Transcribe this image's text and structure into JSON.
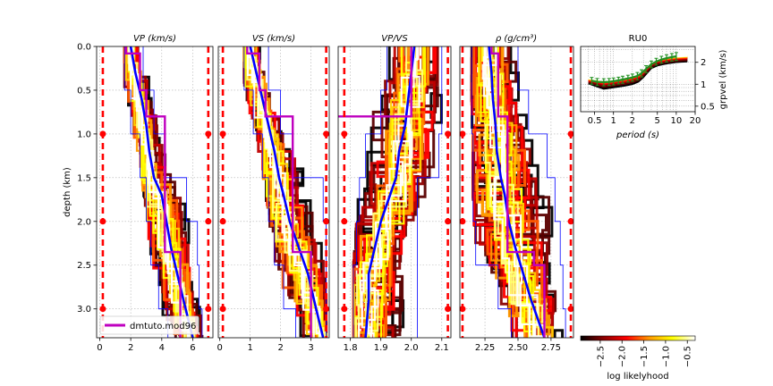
{
  "colors": {
    "bounds": "#ff0000",
    "median": "#0000ff",
    "reference_model": "#bf00bf",
    "dispersion_obs": "#1f8f1f",
    "grid": "#b0b0b0"
  },
  "colormap_stops": [
    "#000000",
    "#8b0000",
    "#ff0000",
    "#ff9900",
    "#ffff00",
    "#ffffff"
  ],
  "chart_data": [
    {
      "type": "line",
      "title": "V_P (km/s)",
      "title_text": "VP (km/s)",
      "ylabel": "depth (km)",
      "xlim": [
        -0.2,
        7.3
      ],
      "ylim": [
        3.33,
        0.0
      ],
      "xticks": [
        0,
        2,
        4,
        6
      ],
      "xtick_labels": [
        "0",
        "2",
        "4",
        "6"
      ],
      "yticks": [
        0.0,
        0.5,
        1.0,
        1.5,
        2.0,
        2.5,
        3.0
      ],
      "ytick_labels": [
        "0.0",
        "0.5",
        "1.0",
        "1.5",
        "2.0",
        "2.5",
        "3.0"
      ],
      "grid": true,
      "bounds": [
        0.2,
        7.0
      ],
      "bound_markers_depth": [
        1.0,
        2.0,
        3.0
      ],
      "legend": {
        "position": "bottom-left",
        "entries": [
          "dmtuto.mod96"
        ]
      },
      "reference_model": {
        "name": "dmtuto.mod96",
        "depth": [
          0.0,
          0.08,
          0.08,
          0.5,
          0.5,
          0.8,
          0.8,
          2.35,
          2.35,
          3.33
        ],
        "value": [
          1.7,
          1.7,
          2.6,
          2.6,
          3.0,
          3.0,
          4.2,
          4.2,
          5.2,
          5.2
        ]
      },
      "median": {
        "depth": [
          0.0,
          0.3,
          0.6,
          0.9,
          1.2,
          1.5,
          1.7,
          2.0,
          2.3,
          2.6,
          2.9,
          3.33
        ],
        "value": [
          2.0,
          2.3,
          2.7,
          3.0,
          3.2,
          3.5,
          4.0,
          4.3,
          4.6,
          5.0,
          5.4,
          6.0
        ]
      },
      "envelope_low": {
        "depth": [
          0.0,
          0.5,
          1.0,
          1.5,
          2.0,
          2.5,
          3.0,
          3.33
        ],
        "value": [
          1.6,
          2.0,
          2.6,
          3.0,
          3.3,
          3.8,
          4.4,
          5.0
        ]
      },
      "envelope_high": {
        "depth": [
          0.0,
          0.5,
          1.0,
          1.5,
          2.0,
          2.5,
          3.0,
          3.33
        ],
        "value": [
          2.8,
          3.5,
          4.2,
          5.6,
          6.3,
          6.4,
          6.6,
          6.6
        ]
      }
    },
    {
      "type": "line",
      "title": "V_S (km/s)",
      "title_text": "VS (km/s)",
      "xlim": [
        -0.05,
        3.6
      ],
      "ylim": [
        3.33,
        0.0
      ],
      "xticks": [
        0,
        1,
        2,
        3
      ],
      "xtick_labels": [
        "0",
        "1",
        "2",
        "3"
      ],
      "grid": true,
      "bounds": [
        0.1,
        3.5
      ],
      "bound_markers_depth": [
        1.0,
        2.0,
        3.0
      ],
      "reference_model": {
        "depth": [
          0.0,
          0.08,
          0.08,
          0.5,
          0.5,
          0.8,
          0.8,
          2.35,
          2.35,
          3.33
        ],
        "value": [
          0.9,
          0.9,
          1.3,
          1.3,
          1.5,
          1.5,
          2.4,
          2.4,
          3.0,
          3.0
        ]
      },
      "median": {
        "depth": [
          0.0,
          0.3,
          0.6,
          0.9,
          1.2,
          1.5,
          1.7,
          2.0,
          2.3,
          2.6,
          2.9,
          3.33
        ],
        "value": [
          1.0,
          1.2,
          1.4,
          1.6,
          1.8,
          1.95,
          2.1,
          2.3,
          2.6,
          2.9,
          3.1,
          3.4
        ]
      },
      "envelope_low": {
        "depth": [
          0.0,
          0.5,
          1.0,
          1.5,
          2.0,
          2.5,
          3.0,
          3.33
        ],
        "value": [
          0.8,
          1.1,
          1.4,
          1.6,
          1.8,
          2.1,
          2.5,
          2.9
        ]
      },
      "envelope_high": {
        "depth": [
          0.0,
          0.5,
          1.0,
          1.5,
          2.0,
          2.5,
          3.0,
          3.33
        ],
        "value": [
          1.6,
          2.0,
          2.4,
          3.4,
          3.5,
          3.5,
          3.5,
          3.5
        ]
      }
    },
    {
      "type": "line",
      "title": "V_P/V_S",
      "title_text": "VP/VS",
      "xlim": [
        1.76,
        2.13
      ],
      "ylim": [
        3.33,
        0.0
      ],
      "xticks": [
        1.8,
        1.9,
        2.0,
        2.1
      ],
      "xtick_labels": [
        "1.8",
        "1.9",
        "2.0",
        "2.1"
      ],
      "grid": true,
      "bounds": [
        1.78,
        2.12
      ],
      "bound_markers_depth": [
        1.0,
        2.0,
        3.0
      ],
      "reference_model": {
        "depth": [
          0.0,
          0.08,
          0.08,
          0.5,
          0.5,
          0.8,
          0.8,
          2.35,
          2.35,
          3.33
        ],
        "value": [
          2.0,
          2.0,
          2.0,
          2.0,
          2.0,
          2.0,
          1.75,
          1.75,
          1.73,
          1.73
        ]
      },
      "median": {
        "depth": [
          0.0,
          0.3,
          0.6,
          0.9,
          1.2,
          1.5,
          1.7,
          2.0,
          2.3,
          2.6,
          2.9,
          3.33
        ],
        "value": [
          2.01,
          2.0,
          1.99,
          1.98,
          1.96,
          1.95,
          1.93,
          1.9,
          1.88,
          1.86,
          1.86,
          1.85
        ]
      },
      "envelope_low": {
        "depth": [
          0.0,
          0.5,
          1.0,
          1.5,
          2.0,
          2.5,
          3.0,
          3.33
        ],
        "value": [
          1.92,
          1.9,
          1.85,
          1.83,
          1.82,
          1.81,
          1.81,
          1.81
        ]
      },
      "envelope_high": {
        "depth": [
          0.0,
          0.5,
          1.0,
          1.5,
          2.0,
          2.5,
          3.0,
          3.33
        ],
        "value": [
          2.1,
          2.1,
          2.09,
          2.02,
          2.02,
          2.02,
          2.02,
          2.02
        ]
      }
    },
    {
      "type": "line",
      "title": "ρ (g/cm³)",
      "title_text": "ρ (g/cm³)",
      "xlim": [
        2.06,
        2.92
      ],
      "ylim": [
        3.33,
        0.0
      ],
      "xticks": [
        2.25,
        2.5,
        2.75
      ],
      "xtick_labels": [
        "2.25",
        "2.50",
        "2.75"
      ],
      "grid": true,
      "bounds": [
        2.08,
        2.9
      ],
      "bound_markers_depth": [
        1.0,
        2.0,
        3.0
      ],
      "reference_model": {
        "depth": [
          0.0,
          0.08,
          0.08,
          0.5,
          0.5,
          0.8,
          0.8,
          2.35,
          2.35,
          2.5,
          2.5,
          3.33
        ],
        "value": [
          2.3,
          2.3,
          2.35,
          2.35,
          2.35,
          2.35,
          2.42,
          2.42,
          2.62,
          2.62,
          2.7,
          2.7
        ]
      },
      "median": {
        "depth": [
          0.0,
          0.3,
          0.6,
          0.9,
          1.2,
          1.5,
          1.7,
          2.0,
          2.3,
          2.6,
          2.9,
          3.33
        ],
        "value": [
          2.28,
          2.3,
          2.31,
          2.33,
          2.34,
          2.37,
          2.4,
          2.43,
          2.48,
          2.54,
          2.6,
          2.7
        ]
      },
      "envelope_low": {
        "depth": [
          0.0,
          0.5,
          1.0,
          1.5,
          2.0,
          2.5,
          3.0,
          3.33
        ],
        "value": [
          2.15,
          2.15,
          2.16,
          2.16,
          2.18,
          2.35,
          2.45,
          2.55
        ]
      },
      "envelope_high": {
        "depth": [
          0.0,
          0.5,
          1.0,
          1.5,
          2.0,
          2.5,
          3.0,
          3.33
        ],
        "value": [
          2.5,
          2.58,
          2.72,
          2.78,
          2.82,
          2.84,
          2.86,
          2.86
        ]
      }
    },
    {
      "type": "line",
      "title": "RU0",
      "xlabel": "period (s)",
      "ylabel": "grpvel (km/s)",
      "xscale": "log",
      "yscale": "log",
      "xlim": [
        0.3,
        20
      ],
      "ylim": [
        0.42,
        3.3
      ],
      "xticks": [
        0.5,
        1,
        2,
        5,
        10,
        20
      ],
      "xtick_labels": [
        "0.5",
        "1",
        "2",
        "5",
        "10",
        "20"
      ],
      "yticks": [
        0.5,
        1,
        2
      ],
      "ytick_labels": [
        "0.5",
        "1",
        "2"
      ],
      "grid": true,
      "predicted_low": {
        "period": [
          0.4,
          0.7,
          1.0,
          1.5,
          2.0,
          2.5,
          3.0,
          4.0,
          5.0,
          7.0,
          10.0,
          15.0
        ],
        "velocity": [
          1.02,
          0.86,
          0.9,
          0.95,
          1.0,
          1.08,
          1.25,
          1.65,
          1.8,
          1.92,
          2.0,
          2.05
        ]
      },
      "predicted_high": {
        "period": [
          0.4,
          0.7,
          1.0,
          1.5,
          2.0,
          2.5,
          3.0,
          4.0,
          5.0,
          7.0,
          10.0,
          15.0
        ],
        "velocity": [
          1.3,
          1.28,
          1.32,
          1.38,
          1.48,
          1.55,
          1.75,
          2.2,
          2.4,
          2.55,
          2.62,
          2.66
        ]
      },
      "observed": {
        "period": [
          0.45,
          0.55,
          0.7,
          0.85,
          1.0,
          1.2,
          1.4,
          1.7,
          2.0,
          2.4,
          2.8,
          3.3,
          4.0,
          4.8,
          5.8,
          7.0,
          8.5,
          10.0
        ],
        "velocity": [
          1.12,
          1.08,
          1.07,
          1.08,
          1.1,
          1.13,
          1.16,
          1.2,
          1.24,
          1.3,
          1.42,
          1.62,
          1.88,
          2.05,
          2.18,
          2.28,
          2.36,
          2.42
        ],
        "error": [
          0.12,
          0.12,
          0.12,
          0.12,
          0.12,
          0.12,
          0.13,
          0.13,
          0.14,
          0.15,
          0.16,
          0.18,
          0.2,
          0.22,
          0.24,
          0.26,
          0.28,
          0.3
        ]
      }
    },
    {
      "type": "heatmap",
      "title": "colorbar",
      "xlabel": "log likelyhood",
      "xlim": [
        -2.95,
        -0.32
      ],
      "xticks": [
        -2.5,
        -2.0,
        -1.5,
        -1.0,
        -0.5
      ],
      "xtick_labels": [
        "−2.5",
        "−2.0",
        "−1.5",
        "−1.0",
        "−0.5"
      ]
    }
  ]
}
